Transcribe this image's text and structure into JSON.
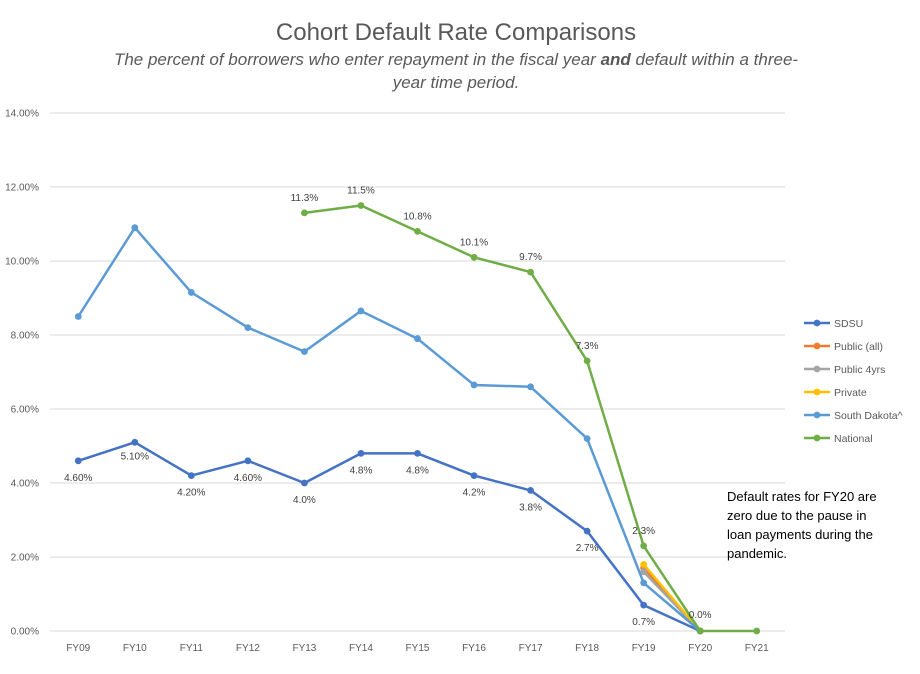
{
  "chart_data": {
    "type": "line",
    "title": "Cohort Default Rate Comparisons",
    "subtitle_parts": [
      {
        "text": "The percent of borrowers who enter repayment in the fiscal year ",
        "bold": false
      },
      {
        "text": "and",
        "bold": true
      },
      {
        "text": " default within a three-",
        "bold": false
      }
    ],
    "subtitle_line2": "year time period.",
    "xlabel": "",
    "ylabel": "",
    "ylim": [
      0,
      14
    ],
    "y_ticks": [
      0,
      2,
      4,
      6,
      8,
      10,
      12,
      14
    ],
    "y_tick_labels": [
      "0.00%",
      "2.00%",
      "4.00%",
      "6.00%",
      "8.00%",
      "10.00%",
      "12.00%",
      "14.00%"
    ],
    "grid": true,
    "legend_position": "right",
    "categories": [
      "FY09",
      "FY10",
      "FY11",
      "FY12",
      "FY13",
      "FY14",
      "FY15",
      "FY16",
      "FY17",
      "FY18",
      "FY19",
      "FY20",
      "FY21"
    ],
    "series": [
      {
        "name": "SDSU",
        "color": "#4472C4",
        "values": [
          4.6,
          5.1,
          4.2,
          4.6,
          4.0,
          4.8,
          4.8,
          4.2,
          3.8,
          2.7,
          0.7,
          0.0,
          null
        ],
        "labels": [
          "4.60%",
          "5.10%",
          "4.20%",
          "4.60%",
          "4.0%",
          "4.8%",
          "4.8%",
          "4.2%",
          "3.8%",
          "2.7%",
          "0.7%",
          null,
          null
        ],
        "label_pos": "below"
      },
      {
        "name": "Public (all)",
        "color": "#ED7D31",
        "values": [
          null,
          null,
          null,
          null,
          null,
          null,
          null,
          null,
          null,
          null,
          1.7,
          0.0,
          null
        ],
        "labels": [],
        "label_pos": "none"
      },
      {
        "name": "Public 4yrs",
        "color": "#A5A5A5",
        "values": [
          null,
          null,
          null,
          null,
          null,
          null,
          null,
          null,
          null,
          null,
          1.6,
          0.0,
          null
        ],
        "labels": [],
        "label_pos": "none"
      },
      {
        "name": "Private",
        "color": "#FFC000",
        "values": [
          null,
          null,
          null,
          null,
          null,
          null,
          null,
          null,
          null,
          null,
          1.8,
          0.0,
          null
        ],
        "labels": [],
        "label_pos": "none"
      },
      {
        "name": "South Dakota^",
        "color": "#5B9BD5",
        "values": [
          8.5,
          10.9,
          9.15,
          8.2,
          7.55,
          8.65,
          7.9,
          6.65,
          6.6,
          5.2,
          1.3,
          0.0,
          null
        ],
        "labels": [],
        "label_pos": "none"
      },
      {
        "name": "National",
        "color": "#70AD47",
        "values": [
          null,
          null,
          null,
          null,
          11.3,
          11.5,
          10.8,
          10.1,
          9.7,
          7.3,
          2.3,
          0.0,
          0.0
        ],
        "labels": [
          null,
          null,
          null,
          null,
          "11.3%",
          "11.5%",
          "10.8%",
          "10.1%",
          "9.7%",
          "7.3%",
          "2.3%",
          "0.0%",
          null
        ],
        "label_pos": "above"
      }
    ],
    "annotation": [
      "Default rates for FY20 are",
      "zero due to the pause in",
      "loan payments during the",
      "pandemic."
    ]
  }
}
